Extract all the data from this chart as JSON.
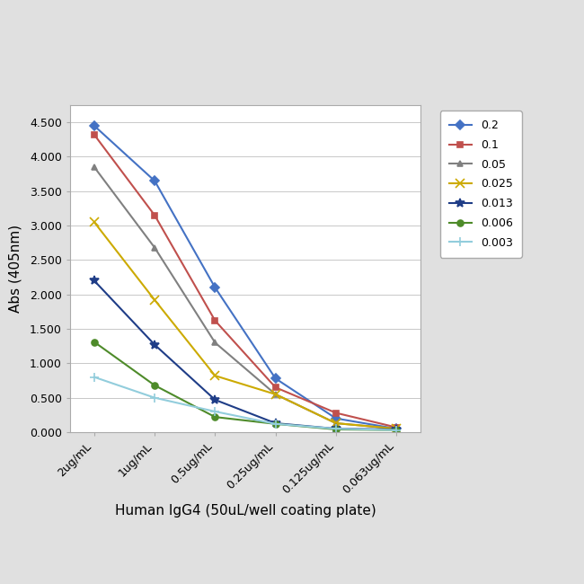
{
  "x_labels": [
    "2ug/mL",
    "1ug/mL",
    "0.5ug/mL",
    "0.25ug/mL",
    "0.125ug/mL",
    "0.063ug/mL"
  ],
  "x_positions": [
    0,
    1,
    2,
    3,
    4,
    5
  ],
  "series": [
    {
      "label": "0.2",
      "color": "#4472C4",
      "marker": "D",
      "linewidth": 1.5,
      "markersize": 5,
      "values": [
        4.45,
        3.65,
        2.1,
        0.78,
        0.2,
        0.05
      ]
    },
    {
      "label": "0.1",
      "color": "#C0504D",
      "marker": "s",
      "linewidth": 1.5,
      "markersize": 5,
      "values": [
        4.32,
        3.15,
        1.62,
        0.65,
        0.28,
        0.07
      ]
    },
    {
      "label": "0.05",
      "color": "#808080",
      "marker": "^",
      "linewidth": 1.5,
      "markersize": 5,
      "values": [
        3.85,
        2.68,
        1.3,
        0.55,
        0.13,
        0.05
      ]
    },
    {
      "label": "0.025",
      "color": "#CCAA00",
      "marker": "x",
      "linewidth": 1.5,
      "markersize": 7,
      "values": [
        3.05,
        1.92,
        0.82,
        0.55,
        0.13,
        0.05
      ]
    },
    {
      "label": "0.013",
      "color": "#1F3D87",
      "marker": "*",
      "linewidth": 1.5,
      "markersize": 7,
      "values": [
        2.2,
        1.27,
        0.47,
        0.13,
        0.05,
        0.04
      ]
    },
    {
      "label": "0.006",
      "color": "#4E8B2A",
      "marker": "o",
      "linewidth": 1.5,
      "markersize": 5,
      "values": [
        1.31,
        0.68,
        0.22,
        0.12,
        0.04,
        0.03
      ]
    },
    {
      "label": "0.003",
      "color": "#92CDDC",
      "marker": "+",
      "linewidth": 1.5,
      "markersize": 7,
      "values": [
        0.8,
        0.5,
        0.3,
        0.12,
        0.05,
        0.03
      ]
    }
  ],
  "xlabel": "Human IgG4 (50uL/well coating plate)",
  "ylabel": "Abs (405nm)",
  "ylim": [
    0.0,
    4.75
  ],
  "yticks": [
    0.0,
    0.5,
    1.0,
    1.5,
    2.0,
    2.5,
    3.0,
    3.5,
    4.0,
    4.5
  ],
  "outer_bg": "#E0E0E0",
  "inner_bg": "#FFFFFF",
  "border_color": "#AAAAAA",
  "grid_color": "#C8C8C8",
  "legend_fontsize": 9,
  "axis_label_fontsize": 11,
  "tick_fontsize": 9
}
